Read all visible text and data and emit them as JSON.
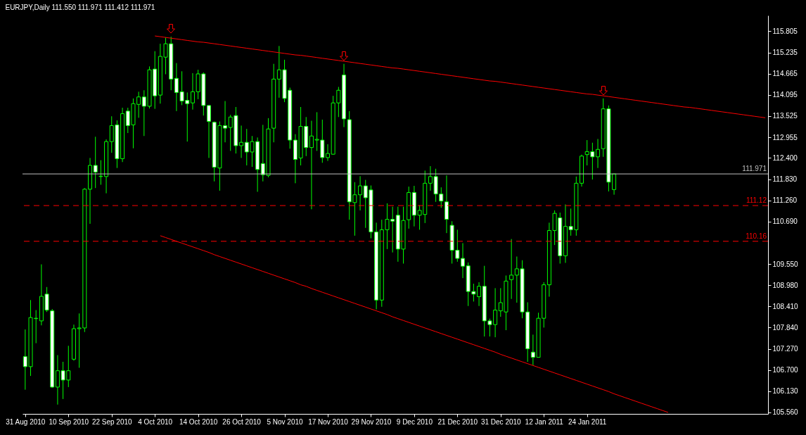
{
  "chart_data": {
    "type": "candlestick",
    "title": "EURJPY,Daily 111.550 111.971 111.412 111.971",
    "color": "#00ff00",
    "categories": [
      "31 Aug 2010",
      null,
      null,
      null,
      null,
      null,
      null,
      null,
      "10 Sep 2010",
      null,
      null,
      null,
      null,
      null,
      null,
      null,
      "22 Sep 2010",
      null,
      null,
      null,
      null,
      null,
      null,
      null,
      "4 Oct 2010",
      null,
      null,
      null,
      null,
      null,
      null,
      null,
      "14 Oct 2010",
      null,
      null,
      null,
      null,
      null,
      null,
      null,
      "26 Oct 2010",
      null,
      null,
      null,
      null,
      null,
      null,
      null,
      "5 Nov 2010",
      null,
      null,
      null,
      null,
      null,
      null,
      null,
      "17 Nov 2010",
      null,
      null,
      null,
      null,
      null,
      null,
      null,
      "29 Nov 2010",
      null,
      null,
      null,
      null,
      null,
      null,
      null,
      "9 Dec 2010",
      null,
      null,
      null,
      null,
      null,
      null,
      null,
      "21 Dec 2010",
      null,
      null,
      null,
      null,
      null,
      null,
      null,
      "31 Dec 2010",
      null,
      null,
      null,
      null,
      null,
      null,
      null,
      "12 Jan 2011",
      null,
      null,
      null,
      null,
      null,
      null,
      null,
      "24 Jan 2011",
      null,
      null,
      null,
      null,
      null,
      null,
      null,
      null,
      null,
      null,
      null,
      null,
      null,
      null,
      null,
      null,
      null,
      null,
      null,
      null,
      null,
      null,
      null,
      null,
      null,
      null,
      null,
      null,
      null,
      null,
      null,
      null,
      null
    ],
    "ohlc": [
      [
        107.06,
        107.79,
        106.17,
        106.79
      ],
      [
        106.79,
        108.58,
        106.54,
        108.11
      ],
      [
        108.08,
        108.31,
        107.42,
        108.09
      ],
      [
        108.02,
        109.54,
        107.9,
        108.68
      ],
      [
        108.74,
        108.93,
        108.26,
        108.31
      ],
      [
        108.29,
        108.34,
        106.22,
        106.24
      ],
      [
        106.24,
        107.1,
        105.77,
        106.68
      ],
      [
        106.68,
        106.92,
        105.92,
        106.43
      ],
      [
        106.43,
        107.35,
        106.24,
        106.68
      ],
      [
        106.99,
        107.92,
        106.95,
        107.81
      ],
      [
        107.81,
        108.22,
        106.76,
        107.83
      ],
      [
        107.83,
        111.59,
        107.72,
        111.56
      ],
      [
        111.56,
        112.4,
        110.63,
        112.2
      ],
      [
        112.2,
        112.97,
        111.59,
        112.02
      ],
      [
        111.9,
        112.34,
        111.68,
        111.91
      ],
      [
        111.9,
        112.9,
        111.45,
        112.84
      ],
      [
        112.84,
        113.52,
        112.54,
        113.27
      ],
      [
        113.29,
        113.41,
        112.13,
        112.38
      ],
      [
        112.38,
        113.75,
        112.29,
        113.59
      ],
      [
        113.66,
        113.75,
        113.07,
        113.27
      ],
      [
        113.29,
        114.0,
        112.66,
        113.86
      ],
      [
        113.84,
        114.18,
        113.48,
        114.04
      ],
      [
        114.04,
        114.22,
        112.99,
        113.79
      ],
      [
        113.79,
        114.86,
        113.73,
        114.77
      ],
      [
        114.79,
        115.27,
        113.72,
        114.07
      ],
      [
        114.09,
        115.47,
        113.86,
        115.13
      ],
      [
        115.11,
        115.64,
        114.65,
        115.47
      ],
      [
        115.47,
        115.66,
        114.22,
        114.52
      ],
      [
        114.54,
        114.95,
        113.66,
        114.16
      ],
      [
        114.18,
        114.73,
        113.82,
        113.93
      ],
      [
        113.95,
        114.16,
        112.84,
        113.86
      ],
      [
        113.88,
        114.68,
        113.7,
        114.18
      ],
      [
        114.18,
        114.77,
        113.98,
        114.66
      ],
      [
        114.66,
        114.7,
        113.54,
        113.81
      ],
      [
        113.81,
        113.82,
        112.4,
        113.38
      ],
      [
        113.36,
        113.38,
        111.77,
        112.15
      ],
      [
        112.13,
        113.38,
        111.52,
        113.27
      ],
      [
        113.27,
        113.93,
        112.82,
        113.2
      ],
      [
        113.22,
        113.56,
        112.59,
        113.5
      ],
      [
        113.54,
        113.77,
        112.52,
        112.73
      ],
      [
        112.73,
        113.27,
        112.4,
        112.82
      ],
      [
        112.82,
        113.18,
        112.2,
        112.56
      ],
      [
        112.56,
        112.99,
        112.16,
        112.84
      ],
      [
        112.84,
        112.95,
        111.49,
        112.09
      ],
      [
        112.25,
        113.29,
        111.77,
        111.95
      ],
      [
        111.93,
        113.47,
        111.88,
        113.18
      ],
      [
        113.2,
        114.93,
        112.82,
        114.52
      ],
      [
        114.52,
        115.41,
        114.02,
        114.77
      ],
      [
        114.77,
        115.04,
        113.9,
        114.0
      ],
      [
        114.22,
        114.29,
        112.65,
        112.88
      ],
      [
        112.88,
        113.04,
        111.72,
        112.36
      ],
      [
        112.4,
        113.77,
        112.2,
        113.25
      ],
      [
        113.25,
        113.5,
        112.45,
        112.68
      ],
      [
        112.68,
        113.4,
        111.02,
        112.99
      ],
      [
        112.88,
        113.63,
        112.59,
        112.9
      ],
      [
        112.88,
        113.43,
        112.27,
        112.41
      ],
      [
        112.41,
        112.77,
        112.32,
        112.52
      ],
      [
        112.5,
        114.07,
        112.49,
        113.88
      ],
      [
        113.88,
        114.31,
        113.5,
        114.22
      ],
      [
        114.63,
        114.93,
        113.23,
        113.45
      ],
      [
        113.43,
        113.66,
        110.74,
        111.22
      ],
      [
        111.2,
        111.75,
        110.31,
        111.41
      ],
      [
        111.41,
        111.91,
        110.99,
        111.65
      ],
      [
        111.65,
        111.81,
        110.52,
        111.33
      ],
      [
        111.54,
        111.66,
        110.24,
        110.41
      ],
      [
        110.41,
        110.66,
        108.33,
        108.58
      ],
      [
        108.58,
        110.74,
        108.4,
        110.47
      ],
      [
        110.47,
        111.18,
        109.95,
        110.75
      ],
      [
        110.75,
        111.09,
        109.86,
        110.7
      ],
      [
        110.86,
        111.09,
        109.61,
        109.95
      ],
      [
        109.95,
        111.09,
        109.56,
        110.72
      ],
      [
        110.74,
        111.63,
        110.5,
        111.47
      ],
      [
        111.47,
        111.65,
        110.56,
        110.86
      ],
      [
        110.86,
        111.13,
        110.47,
        110.99
      ],
      [
        110.88,
        112.06,
        110.65,
        111.72
      ],
      [
        111.72,
        112.18,
        111.52,
        111.9
      ],
      [
        111.9,
        112.11,
        111.22,
        111.43
      ],
      [
        111.43,
        111.61,
        111.06,
        111.24
      ],
      [
        111.22,
        111.93,
        110.38,
        110.75
      ],
      [
        110.59,
        110.7,
        109.56,
        109.92
      ],
      [
        109.92,
        110.47,
        109.61,
        109.7
      ],
      [
        109.7,
        110.11,
        109.17,
        109.49
      ],
      [
        109.5,
        109.59,
        108.42,
        108.81
      ],
      [
        108.81,
        109.02,
        108.54,
        108.74
      ],
      [
        108.67,
        109.06,
        108.42,
        108.95
      ],
      [
        108.95,
        109.5,
        107.6,
        108.02
      ],
      [
        108.02,
        108.08,
        107.6,
        107.92
      ],
      [
        107.92,
        108.9,
        107.58,
        108.31
      ],
      [
        108.29,
        108.9,
        108.13,
        108.51
      ],
      [
        108.26,
        109.24,
        107.77,
        109.09
      ],
      [
        109.13,
        110.22,
        108.61,
        109.25
      ],
      [
        109.25,
        109.75,
        108.51,
        109.42
      ],
      [
        109.42,
        109.65,
        108.09,
        108.26
      ],
      [
        108.26,
        108.52,
        106.92,
        107.27
      ],
      [
        107.18,
        107.65,
        106.83,
        107.04
      ],
      [
        107.04,
        108.24,
        107.04,
        108.09
      ],
      [
        108.09,
        109.06,
        107.84,
        108.99
      ],
      [
        108.99,
        110.66,
        108.67,
        110.45
      ],
      [
        110.45,
        110.99,
        110.06,
        110.91
      ],
      [
        110.79,
        110.93,
        109.56,
        109.77
      ],
      [
        109.77,
        111.15,
        109.58,
        110.56
      ],
      [
        110.56,
        111.04,
        110.31,
        110.47
      ],
      [
        110.47,
        111.9,
        110.31,
        111.72
      ],
      [
        111.72,
        112.49,
        111.63,
        112.45
      ],
      [
        112.49,
        112.88,
        112.2,
        112.57
      ],
      [
        112.57,
        112.81,
        111.82,
        112.43
      ],
      [
        112.43,
        112.91,
        112.13,
        112.63
      ],
      [
        112.65,
        114.0,
        112.43,
        113.72
      ],
      [
        113.72,
        113.81,
        111.5,
        111.75
      ],
      [
        111.55,
        111.971,
        111.412,
        111.971
      ],
      null,
      null,
      null,
      null,
      null,
      null,
      null,
      null,
      null,
      null,
      null,
      null,
      null,
      null,
      null,
      null,
      null,
      null,
      null,
      null,
      null,
      null,
      null,
      null,
      null,
      null,
      null,
      null
    ],
    "series": [
      {
        "type": "line",
        "color": "#ff0000",
        "values": [
          null,
          null,
          null,
          null,
          null,
          null,
          null,
          null,
          null,
          null,
          null,
          null,
          null,
          null,
          null,
          null,
          null,
          null,
          null,
          null,
          null,
          null,
          null,
          null,
          115.68,
          115.66,
          115.64,
          115.62,
          115.6,
          115.58,
          115.56,
          115.54,
          115.52,
          115.51,
          115.49,
          115.47,
          115.45,
          115.43,
          115.41,
          115.39,
          115.37,
          115.35,
          115.33,
          115.31,
          115.29,
          115.27,
          115.25,
          115.23,
          115.21,
          115.19,
          115.17,
          115.16,
          115.14,
          115.12,
          115.1,
          115.08,
          115.06,
          115.04,
          115.02,
          115.0,
          114.98,
          114.96,
          114.94,
          114.92,
          114.9,
          114.88,
          114.86,
          114.84,
          114.82,
          114.81,
          114.79,
          114.77,
          114.75,
          114.73,
          114.71,
          114.69,
          114.67,
          114.65,
          114.63,
          114.61,
          114.59,
          114.57,
          114.55,
          114.53,
          114.51,
          114.49,
          114.47,
          114.46,
          114.44,
          114.42,
          114.4,
          114.38,
          114.36,
          114.34,
          114.32,
          114.3,
          114.28,
          114.26,
          114.24,
          114.22,
          114.2,
          114.18,
          114.16,
          114.14,
          114.12,
          114.11,
          114.09,
          114.07,
          114.05,
          114.03,
          114.01,
          113.99,
          113.97,
          113.95,
          113.93,
          113.91,
          113.89,
          113.87,
          113.85,
          113.83,
          113.81,
          113.79,
          113.77,
          113.76,
          113.74,
          113.72,
          113.7,
          113.68,
          113.66,
          113.64,
          113.62,
          113.6,
          113.58,
          113.56,
          113.54,
          113.52,
          113.5,
          113.48
        ]
      },
      {
        "type": "line",
        "color": "#ff0000",
        "values": [
          null,
          null,
          null,
          null,
          null,
          null,
          null,
          null,
          null,
          null,
          null,
          null,
          null,
          null,
          null,
          null,
          null,
          null,
          null,
          null,
          null,
          null,
          null,
          null,
          null,
          110.31,
          110.26,
          110.21,
          110.16,
          110.11,
          110.06,
          110.01,
          109.96,
          109.91,
          109.86,
          109.8,
          109.75,
          109.7,
          109.65,
          109.6,
          109.55,
          109.5,
          109.45,
          109.4,
          109.35,
          109.3,
          109.25,
          109.2,
          109.15,
          109.1,
          109.05,
          108.99,
          108.95,
          108.89,
          108.84,
          108.79,
          108.74,
          108.69,
          108.64,
          108.59,
          108.54,
          108.49,
          108.44,
          108.39,
          108.34,
          108.29,
          108.24,
          108.19,
          108.13,
          108.08,
          108.03,
          107.98,
          107.93,
          107.88,
          107.83,
          107.78,
          107.73,
          107.68,
          107.63,
          107.58,
          107.53,
          107.48,
          107.43,
          107.38,
          107.33,
          107.28,
          107.23,
          107.18,
          107.12,
          107.07,
          107.02,
          106.97,
          106.92,
          106.87,
          106.82,
          106.77,
          106.72,
          106.67,
          106.62,
          106.57,
          106.52,
          106.47,
          106.42,
          106.37,
          106.32,
          106.27,
          106.22,
          106.17,
          106.12,
          106.06,
          106.01,
          105.96,
          105.91,
          105.86,
          105.81,
          105.76,
          105.71,
          105.66,
          105.61,
          105.56,
          null,
          null,
          null,
          null,
          null,
          null,
          null,
          null,
          null,
          null,
          null,
          null,
          null,
          null,
          null,
          null,
          null,
          null
        ]
      }
    ],
    "ref_lines": [
      {
        "axis": "y",
        "value": 111.971,
        "label": "111.971",
        "color": "#c0c0c0",
        "line_style": "solid"
      },
      {
        "axis": "y",
        "value": 111.12,
        "label": "111.12",
        "color": "#ff0000",
        "line_style": "dashed"
      },
      {
        "axis": "y",
        "value": 110.16,
        "label": "110.16",
        "color": "#ff0000",
        "line_style": "dashed"
      }
    ],
    "ylim": [
      105.52,
      116.23
    ],
    "yticks": [
      {
        "value": 105.56,
        "label": "105.560"
      },
      {
        "value": 106.13,
        "label": "106.130"
      },
      {
        "value": 106.7,
        "label": "106.700"
      },
      {
        "value": 107.27,
        "label": "107.270"
      },
      {
        "value": 107.84,
        "label": "107.840"
      },
      {
        "value": 108.41,
        "label": "108.410"
      },
      {
        "value": 108.98,
        "label": "108.980"
      },
      {
        "value": 109.55,
        "label": "109.550"
      },
      {
        "value": 110.69,
        "label": "110.690"
      },
      {
        "value": 111.26,
        "label": "111.260"
      },
      {
        "value": 111.83,
        "label": "111.830"
      },
      {
        "value": 112.4,
        "label": "112.400"
      },
      112.955,
      113.525,
      114.095,
      114.665,
      115.235,
      115.805
    ]
  }
}
